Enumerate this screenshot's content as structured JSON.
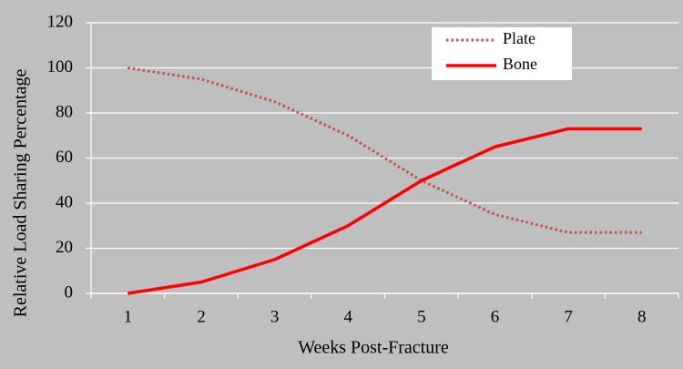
{
  "chart_data": {
    "type": "line",
    "x_label": "Weeks Post-Fracture",
    "y_label": "Relative Load Sharing Percentage",
    "categories": [
      "1",
      "2",
      "3",
      "4",
      "5",
      "6",
      "7",
      "8"
    ],
    "series": [
      {
        "name": "Plate",
        "color": "#c0504d",
        "dash": "dotted",
        "text_color": "#c00000",
        "values": [
          100,
          95,
          85,
          70,
          50,
          35,
          27,
          27
        ]
      },
      {
        "name": "Bone",
        "color": "#ff0000",
        "dash": "solid",
        "text_color": "#c00000",
        "values": [
          0,
          5,
          15,
          30,
          50,
          65,
          73,
          73
        ]
      }
    ],
    "ylim": [
      0,
      120
    ],
    "yticks": [
      0,
      20,
      40,
      60,
      80,
      100,
      120
    ],
    "grid": true,
    "legend": "top-right",
    "background": "#bfbfbf"
  }
}
